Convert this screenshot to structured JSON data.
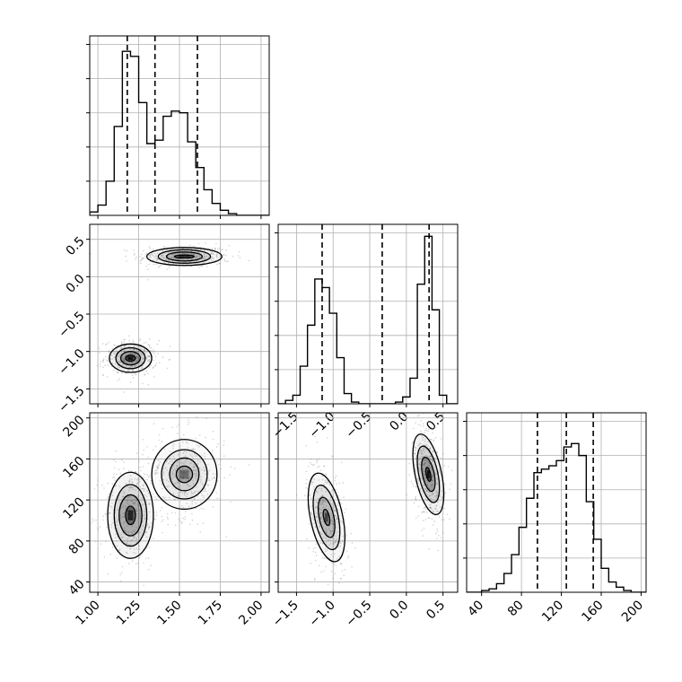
{
  "chart_data": {
    "type": "corner",
    "grid": true,
    "colors": {
      "line": "#000000",
      "grid": "#b0b0b0",
      "sample": "#808080"
    },
    "panels": [
      {
        "id": "hist-x",
        "type": "histogram",
        "xlim": [
          0.95,
          2.05
        ],
        "ylim": [
          0,
          1.05
        ],
        "bins": {
          "start": 0.95,
          "width": 0.05,
          "values": [
            0.02,
            0.06,
            0.2,
            0.52,
            0.96,
            0.93,
            0.66,
            0.42,
            0.44,
            0.58,
            0.61,
            0.6,
            0.43,
            0.28,
            0.15,
            0.07,
            0.03,
            0.01,
            0.0,
            0.0,
            0.0,
            0.0
          ]
        },
        "quantiles": [
          1.18,
          1.35,
          1.61
        ],
        "xticks": [
          1.0,
          1.25,
          1.5,
          1.75,
          2.0
        ],
        "xticklabels": [],
        "yticks": [
          0.2,
          0.4,
          0.6,
          0.8,
          1.0
        ]
      },
      {
        "id": "hist-y",
        "type": "histogram",
        "xlim": [
          -1.75,
          0.7
        ],
        "ylim": [
          0,
          1.05
        ],
        "bins": {
          "start": -1.75,
          "width": 0.1,
          "values": [
            0.0,
            0.02,
            0.05,
            0.22,
            0.46,
            0.73,
            0.68,
            0.53,
            0.27,
            0.06,
            0.01,
            0.0,
            0.0,
            0.0,
            0.0,
            0.0,
            0.01,
            0.04,
            0.15,
            0.7,
            0.98,
            0.55,
            0.05,
            0.0,
            0.0
          ]
        },
        "quantiles": [
          -1.15,
          -0.33,
          0.31
        ],
        "xticks": [
          -1.5,
          -1.0,
          -0.5,
          0.0,
          0.5
        ],
        "xticklabels": [
          "−1.5",
          "−1.0",
          "−0.5",
          "0.0",
          "0.5"
        ],
        "yticks": [
          0.2,
          0.4,
          0.6,
          0.8,
          1.0
        ]
      },
      {
        "id": "hist-z",
        "type": "histogram",
        "xlim": [
          25,
          205
        ],
        "ylim": [
          0,
          1.05
        ],
        "bins": {
          "start": 25,
          "width": 7.5,
          "values": [
            0.0,
            0.0,
            0.01,
            0.02,
            0.05,
            0.11,
            0.22,
            0.38,
            0.55,
            0.7,
            0.72,
            0.74,
            0.77,
            0.85,
            0.87,
            0.8,
            0.53,
            0.31,
            0.14,
            0.06,
            0.03,
            0.01,
            0.0,
            0.0
          ]
        },
        "quantiles": [
          96,
          125,
          152
        ],
        "xticks": [
          40,
          80,
          120,
          160,
          200
        ],
        "xticklabels": [
          "40",
          "80",
          "120",
          "160",
          "200"
        ],
        "yticks": [
          0.2,
          0.4,
          0.6,
          0.8,
          1.0
        ]
      },
      {
        "id": "scatter-x-y",
        "type": "contour2d",
        "xlim": [
          0.95,
          2.05
        ],
        "ylim": [
          -1.7,
          0.7
        ],
        "xticks": [
          1.0,
          1.25,
          1.5,
          1.75,
          2.0
        ],
        "xticklabels": [],
        "yticks": [
          -1.5,
          -1.0,
          -0.5,
          0.0,
          0.5
        ],
        "yticklabels": [
          "−1.5",
          "−1.0",
          "−0.5",
          "0.0",
          "0.5"
        ],
        "blobs": [
          {
            "center": [
              1.53,
              0.27
            ],
            "radii": [
              [
                0.06,
                0.02
              ],
              [
                0.11,
                0.06
              ],
              [
                0.16,
                0.09
              ],
              [
                0.23,
                0.12
              ]
            ],
            "peak": 0.75
          },
          {
            "center": [
              1.2,
              -1.09
            ],
            "radii": [
              [
                0.03,
                0.04
              ],
              [
                0.06,
                0.09
              ],
              [
                0.09,
                0.14
              ],
              [
                0.13,
                0.19
              ]
            ],
            "peak": 1.0
          }
        ]
      },
      {
        "id": "scatter-x-z",
        "type": "contour2d",
        "xlim": [
          0.95,
          2.05
        ],
        "ylim": [
          30,
          205
        ],
        "xticks": [
          1.0,
          1.25,
          1.5,
          1.75,
          2.0
        ],
        "xticklabels": [
          "1.00",
          "1.25",
          "1.50",
          "1.75",
          "2.00"
        ],
        "yticks": [
          40,
          80,
          120,
          160,
          200
        ],
        "yticklabels": [
          "40",
          "80",
          "120",
          "160",
          "200"
        ],
        "blobs": [
          {
            "center": [
              1.2,
              105
            ],
            "radii": [
              [
                0.03,
                9
              ],
              [
                0.07,
                20
              ],
              [
                0.1,
                30
              ],
              [
                0.14,
                42
              ]
            ],
            "peak": 0.85
          },
          {
            "center": [
              1.53,
              145
            ],
            "radii": [
              [
                0.05,
                8
              ],
              [
                0.09,
                16
              ],
              [
                0.14,
                24
              ],
              [
                0.2,
                34
              ]
            ],
            "peak": 0.45
          }
        ]
      },
      {
        "id": "scatter-y-z",
        "type": "contour2d",
        "xlim": [
          -1.75,
          0.7
        ],
        "ylim": [
          30,
          205
        ],
        "xticks": [
          -1.5,
          -1.0,
          -0.5,
          0.0,
          0.5
        ],
        "xticklabels": [
          "−1.5",
          "−1.0",
          "−0.5",
          "0.0",
          "0.5"
        ],
        "yticks": [
          40,
          80,
          120,
          160,
          200
        ],
        "yticklabels": [],
        "blobs": [
          {
            "center": [
              -1.09,
              103
            ],
            "radii": [
              [
                0.04,
                8
              ],
              [
                0.1,
                20
              ],
              [
                0.16,
                32
              ],
              [
                0.22,
                44
              ]
            ],
            "peak": 0.65,
            "tilt": -1
          },
          {
            "center": [
              0.3,
              145
            ],
            "radii": [
              [
                0.03,
                7
              ],
              [
                0.08,
                17
              ],
              [
                0.13,
                28
              ],
              [
                0.18,
                40
              ]
            ],
            "peak": 1.0,
            "tilt": -1
          }
        ]
      }
    ]
  }
}
